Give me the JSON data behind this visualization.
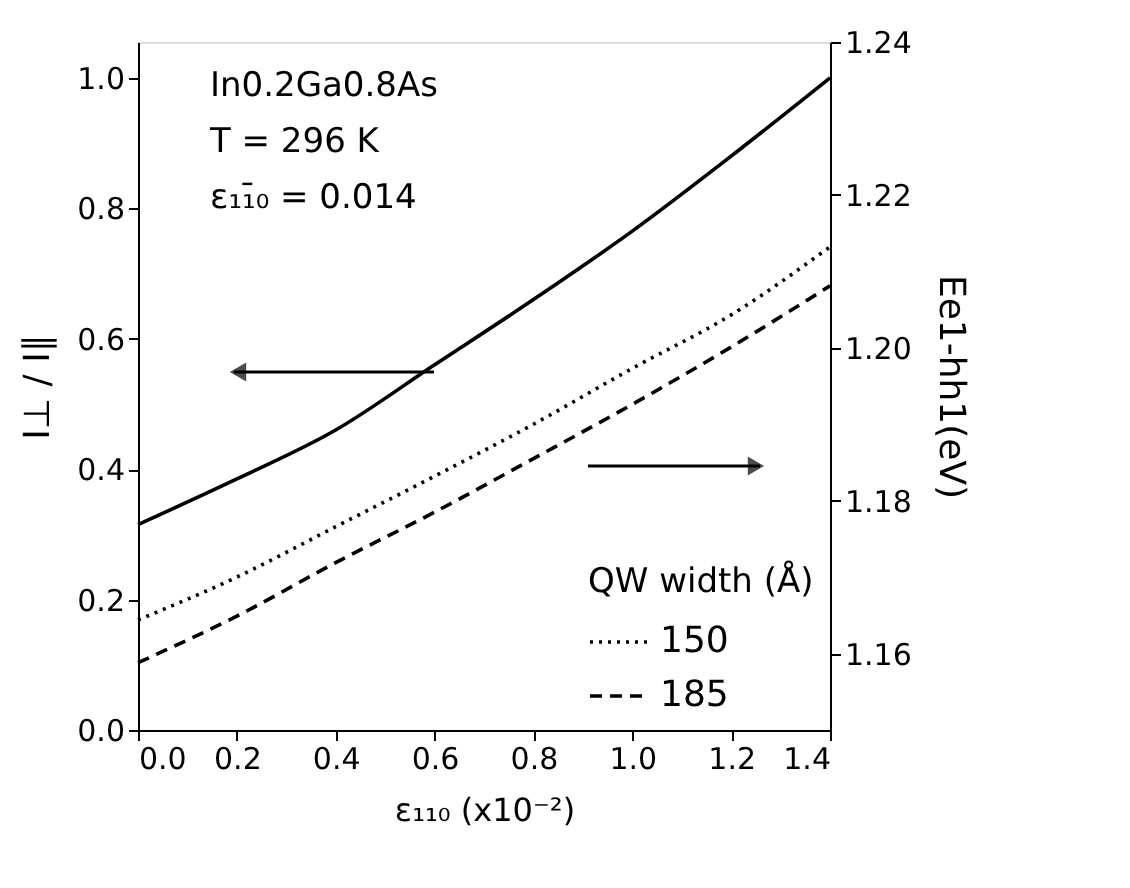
{
  "chart_data": {
    "type": "line",
    "x": [
      0,
      0.2,
      0.4,
      0.6,
      0.8,
      1.0,
      1.2,
      1.4
    ],
    "xlabel": "ε₁₁₀ (x10⁻²)",
    "ylabel": "I⊥ / I∥",
    "y2label": "Ee1-hh1(eV)",
    "legend_title": "QW width (Å)",
    "legend": "bottom right",
    "xlim": [
      0,
      1.4
    ],
    "xticks": [
      {
        "value": 0,
        "label": "0.0"
      },
      0.2,
      0.4,
      0.6,
      0.8,
      {
        "value": 1,
        "label": "1.0"
      },
      1.2,
      1.4
    ],
    "ylim": [
      0,
      1.055
    ],
    "yticks": [
      {
        "value": 0,
        "label": "0.0"
      },
      0.2,
      0.4,
      0.6,
      0.8,
      {
        "value": 1,
        "label": "1.0"
      }
    ],
    "y2lim": [
      1.15,
      1.24
    ],
    "y2ticks": [
      1.16,
      1.18,
      {
        "value": 1.2,
        "label": "1.20"
      },
      1.22,
      1.24
    ],
    "series": [
      {
        "color": "#000000",
        "line_style": "solid",
        "values": [
          0.315,
          0.385,
          0.46,
          0.56,
          0.66,
          0.765,
          0.88,
          1.0
        ]
      },
      {
        "name": "150",
        "color": "#000000",
        "line_style": "dotted",
        "axis": "y2",
        "values": [
          1.1644,
          1.17,
          1.1766,
          1.1832,
          1.19,
          1.1973,
          1.2043,
          1.2132
        ]
      },
      {
        "name": "185",
        "color": "#000000",
        "line_style": "dashed",
        "axis": "y2",
        "values": [
          1.1588,
          1.1649,
          1.1719,
          1.1785,
          1.1855,
          1.1926,
          1.2001,
          1.2081
        ]
      }
    ],
    "annotations": [
      "In0.2Ga0.8As",
      "T = 296 K",
      "ε₁₁̄₀ = 0.014"
    ],
    "grid": false
  }
}
